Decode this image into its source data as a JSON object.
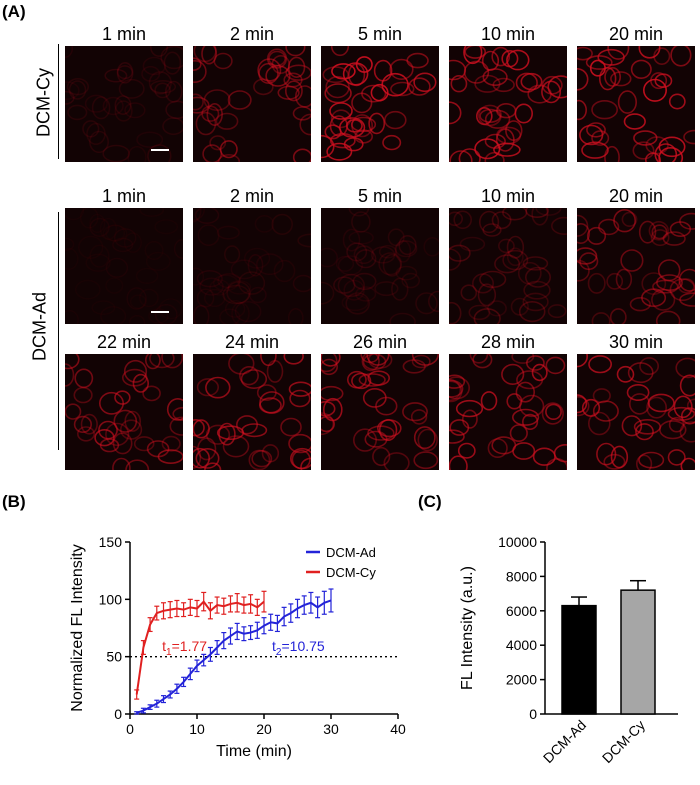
{
  "panels": {
    "a": "(A)",
    "b": "(B)",
    "c": "(C)"
  },
  "micrographs": {
    "dcm_cy": {
      "label": "DCM-Cy",
      "frames": [
        {
          "time": "1 min",
          "brightness": 0.15
        },
        {
          "time": "2 min",
          "brightness": 0.55
        },
        {
          "time": "5 min",
          "brightness": 0.9
        },
        {
          "time": "10 min",
          "brightness": 0.85
        },
        {
          "time": "20 min",
          "brightness": 0.9
        }
      ]
    },
    "dcm_ad": {
      "label": "DCM-Ad",
      "frames": [
        {
          "time": "1 min",
          "brightness": 0.05
        },
        {
          "time": "2 min",
          "brightness": 0.1
        },
        {
          "time": "5 min",
          "brightness": 0.15
        },
        {
          "time": "10 min",
          "brightness": 0.3
        },
        {
          "time": "20 min",
          "brightness": 0.55
        },
        {
          "time": "22 min",
          "brightness": 0.65
        },
        {
          "time": "24 min",
          "brightness": 0.7
        },
        {
          "time": "26 min",
          "brightness": 0.7
        },
        {
          "time": "28 min",
          "brightness": 0.75
        },
        {
          "time": "30 min",
          "brightness": 0.75
        }
      ]
    },
    "cell_color": "#d01020"
  },
  "chart_data": [
    {
      "type": "line",
      "xlabel": "Time (min)",
      "ylabel": "Normalized FL Intensity",
      "xlim": [
        0,
        40
      ],
      "ylim": [
        0,
        150
      ],
      "xticks": [
        0,
        10,
        20,
        30,
        40
      ],
      "yticks": [
        0,
        50,
        100,
        150
      ],
      "reference_line": {
        "y": 50,
        "style": "dotted"
      },
      "legend_position": "top-right",
      "series": [
        {
          "name": "DCM-Ad",
          "color": "#2323d8",
          "x": [
            1,
            2,
            3,
            4,
            5,
            6,
            7,
            8,
            9,
            10,
            11,
            12,
            13,
            14,
            15,
            16,
            17,
            18,
            19,
            20,
            21,
            22,
            23,
            24,
            25,
            26,
            27,
            28,
            29,
            30
          ],
          "y": [
            1,
            3,
            6,
            9,
            13,
            17,
            22,
            28,
            35,
            42,
            47,
            52,
            58,
            64,
            68,
            72,
            70,
            71,
            73,
            77,
            80,
            79,
            85,
            88,
            92,
            95,
            97,
            93,
            97,
            99
          ],
          "err": [
            1,
            2,
            2,
            3,
            3,
            3,
            4,
            4,
            5,
            5,
            5,
            6,
            6,
            7,
            7,
            7,
            6,
            6,
            7,
            7,
            7,
            7,
            8,
            8,
            8,
            8,
            9,
            9,
            10,
            10
          ]
        },
        {
          "name": "DCM-Cy",
          "color": "#e02020",
          "x": [
            1,
            2,
            3,
            4,
            5,
            6,
            7,
            8,
            9,
            10,
            11,
            12,
            13,
            14,
            15,
            16,
            17,
            18,
            19,
            20
          ],
          "y": [
            17,
            58,
            78,
            88,
            90,
            91,
            92,
            91,
            93,
            92,
            98,
            90,
            95,
            94,
            96,
            97,
            95,
            96,
            93,
            98
          ],
          "err": [
            4,
            6,
            6,
            6,
            7,
            7,
            7,
            6,
            7,
            7,
            8,
            7,
            7,
            7,
            7,
            8,
            7,
            8,
            7,
            9
          ]
        }
      ],
      "annotations": [
        {
          "text": "t",
          "sub": "1",
          "rest": "=1.77",
          "color": "#e02020",
          "x": 4.8,
          "y": 55
        },
        {
          "text": "t",
          "sub": "2",
          "rest": "=10.75",
          "color": "#2323d8",
          "x": 21.2,
          "y": 55
        }
      ]
    },
    {
      "type": "bar",
      "ylabel": "FL Intensity (a.u.)",
      "ylim": [
        0,
        10000
      ],
      "yticks": [
        0,
        2000,
        4000,
        6000,
        8000,
        10000
      ],
      "categories": [
        "DCM-Ad",
        "DCM-Cy"
      ],
      "values": [
        6300,
        7200
      ],
      "err": [
        500,
        550
      ],
      "colors": [
        "#000000",
        "#a6a6a6"
      ]
    }
  ]
}
